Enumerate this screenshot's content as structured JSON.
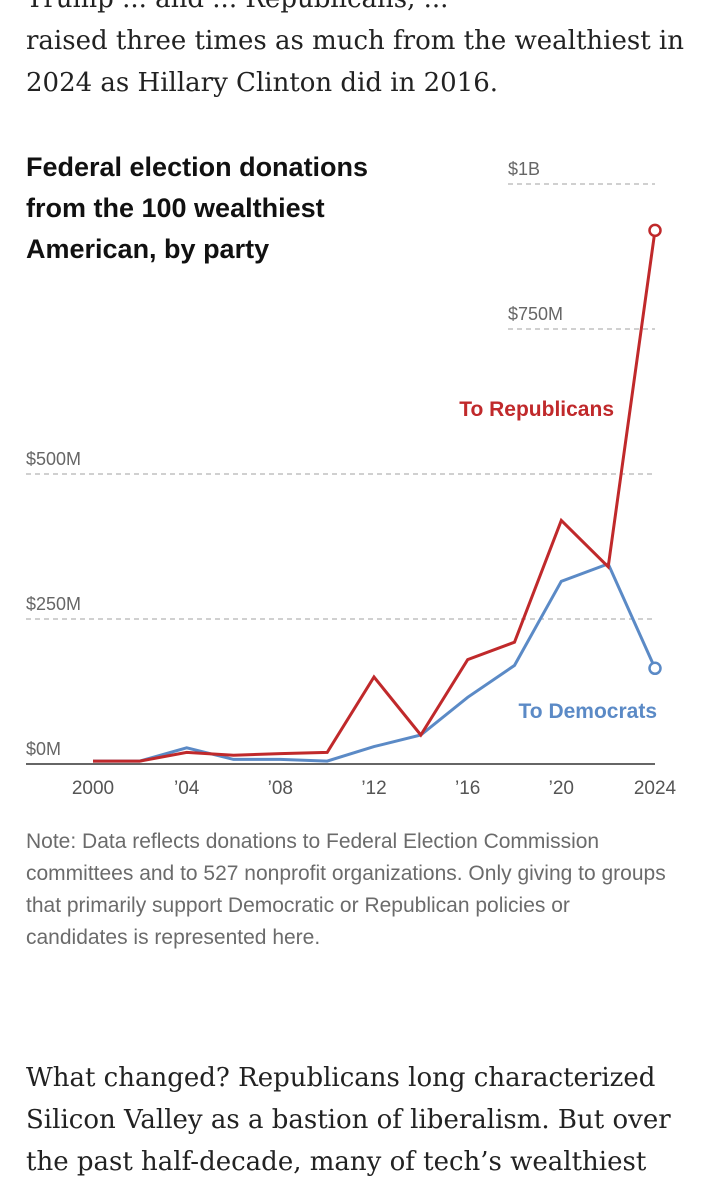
{
  "article": {
    "intro_partial": "Trump ... and ... Republicans, ...",
    "intro_line_1": "raised three times as much from the wealthiest in",
    "intro_line_2": "2024 as Hillary Clinton did in 2016.",
    "after_chart": "What changed? Republicans long characterized Silicon Valley as a bastion of liberalism. But over the past half-decade, many of tech’s wealthiest"
  },
  "chart_data": {
    "type": "line",
    "title": "Federal election donations from the 100 wealthiest American, by party",
    "x": [
      2000,
      2002,
      2004,
      2006,
      2008,
      2010,
      2012,
      2014,
      2016,
      2018,
      2020,
      2022,
      2024
    ],
    "x_tick_values": [
      2000,
      2004,
      2008,
      2012,
      2016,
      2020,
      2024
    ],
    "x_tick_labels": [
      "2000",
      "’04",
      "’08",
      "’12",
      "’16",
      "’20",
      "2024"
    ],
    "y_ticks": [
      0,
      250,
      500,
      750,
      1000
    ],
    "y_tick_labels": [
      "$0M",
      "$250M",
      "$500M",
      "$750M",
      "$1B"
    ],
    "ylim": [
      0,
      1000
    ],
    "ylabel": "",
    "xlabel": "",
    "series": [
      {
        "name": "Republicans",
        "label": "To Republicans",
        "color": "#c0292b",
        "values": [
          5,
          5,
          20,
          15,
          18,
          20,
          150,
          50,
          180,
          210,
          420,
          340,
          920
        ]
      },
      {
        "name": "Democrats",
        "label": "To Democrats",
        "color": "#5b8ac6",
        "values": [
          5,
          5,
          28,
          8,
          8,
          5,
          30,
          50,
          115,
          170,
          315,
          345,
          165
        ]
      }
    ],
    "note": "Note: Data reflects donations to Federal Election Commission committees and to 527 nonprofit organizations. Only giving to groups that primarily support Democratic or Republican policies or candidates is represented here."
  }
}
